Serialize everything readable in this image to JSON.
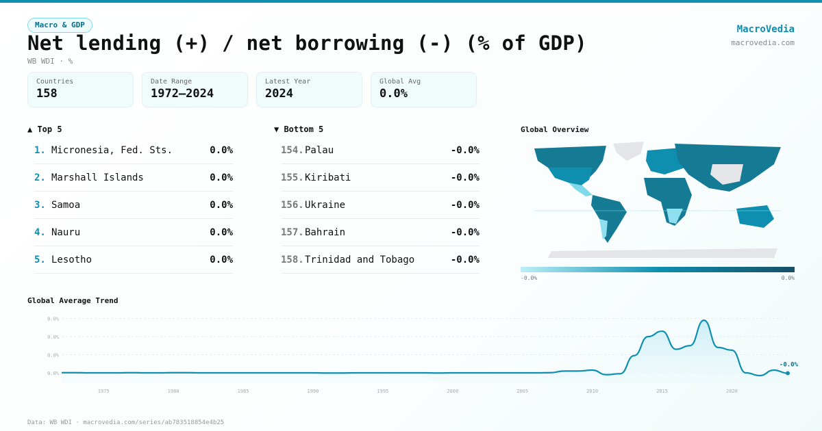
{
  "header": {
    "badge": "Macro & GDP",
    "title": "Net lending (+) / net borrowing (-) (% of GDP)",
    "subtitle": "WB WDI · %",
    "brand": "MacroVedia",
    "brand_url": "macrovedia.com"
  },
  "stats": [
    {
      "label": "Countries",
      "value": "158"
    },
    {
      "label": "Date Range",
      "value": "1972–2024"
    },
    {
      "label": "Latest Year",
      "value": "2024"
    },
    {
      "label": "Global Avg",
      "value": "0.0%"
    }
  ],
  "top": {
    "title": "▲ Top 5",
    "items": [
      {
        "rank": "1.",
        "name": "Micronesia, Fed. Sts.",
        "value": "0.0%"
      },
      {
        "rank": "2.",
        "name": "Marshall Islands",
        "value": "0.0%"
      },
      {
        "rank": "3.",
        "name": "Samoa",
        "value": "0.0%"
      },
      {
        "rank": "4.",
        "name": "Nauru",
        "value": "0.0%"
      },
      {
        "rank": "5.",
        "name": "Lesotho",
        "value": "0.0%"
      }
    ]
  },
  "bottom": {
    "title": "▼ Bottom 5",
    "items": [
      {
        "rank": "154.",
        "name": "Palau",
        "value": "-0.0%"
      },
      {
        "rank": "155.",
        "name": "Kiribati",
        "value": "-0.0%"
      },
      {
        "rank": "156.",
        "name": "Ukraine",
        "value": "-0.0%"
      },
      {
        "rank": "157.",
        "name": "Bahrain",
        "value": "-0.0%"
      },
      {
        "rank": "158.",
        "name": "Trinidad and Tobago",
        "value": "-0.0%"
      }
    ]
  },
  "map": {
    "title": "Global Overview",
    "legend_min": "-0.0%",
    "legend_max": "0.0%",
    "colors": [
      "#bdeff8",
      "#0e8fb0",
      "#174f66"
    ]
  },
  "footer": "Data: WB WDI · macrovedia.com/series/ab783518854e4b25",
  "chart_data": {
    "type": "area",
    "title": "Global Average Trend",
    "ylabel": "",
    "xlabel": "",
    "y_tick_labels": [
      "0.0%",
      "0.0%",
      "0.0%",
      "0.0%"
    ],
    "x_tick_labels": [
      "1975",
      "1980",
      "1985",
      "1990",
      "1995",
      "2000",
      "2005",
      "2010",
      "2015",
      "2020"
    ],
    "end_label": "-0.0%",
    "color": "#0e8fb0",
    "grid": true,
    "x": [
      1972,
      1973,
      1974,
      1975,
      1976,
      1977,
      1978,
      1979,
      1980,
      1981,
      1982,
      1983,
      1984,
      1985,
      1986,
      1987,
      1988,
      1989,
      1990,
      1991,
      1992,
      1993,
      1994,
      1995,
      1996,
      1997,
      1998,
      1999,
      2000,
      2001,
      2002,
      2003,
      2004,
      2005,
      2006,
      2007,
      2008,
      2009,
      2010,
      2011,
      2012,
      2013,
      2014,
      2015,
      2016,
      2017,
      2018,
      2019,
      2020,
      2021,
      2022,
      2023,
      2024
    ],
    "y": [
      0.0001,
      0.0001,
      0,
      0,
      0,
      0.0001,
      0,
      0,
      0.0001,
      0.0001,
      0,
      0,
      0,
      0,
      0,
      0,
      0,
      0,
      0,
      -0.0001,
      -0.0001,
      0,
      0,
      0,
      0,
      0,
      0,
      -0.0001,
      0,
      0,
      0,
      0,
      0,
      0,
      0,
      0.0001,
      0.001,
      0.001,
      0.0015,
      -0.001,
      -0.0005,
      0.0095,
      0.02,
      0.023,
      0.013,
      0.015,
      0.029,
      0.014,
      0.0125,
      0,
      -0.0015,
      0.0015,
      -0.0002
    ]
  }
}
